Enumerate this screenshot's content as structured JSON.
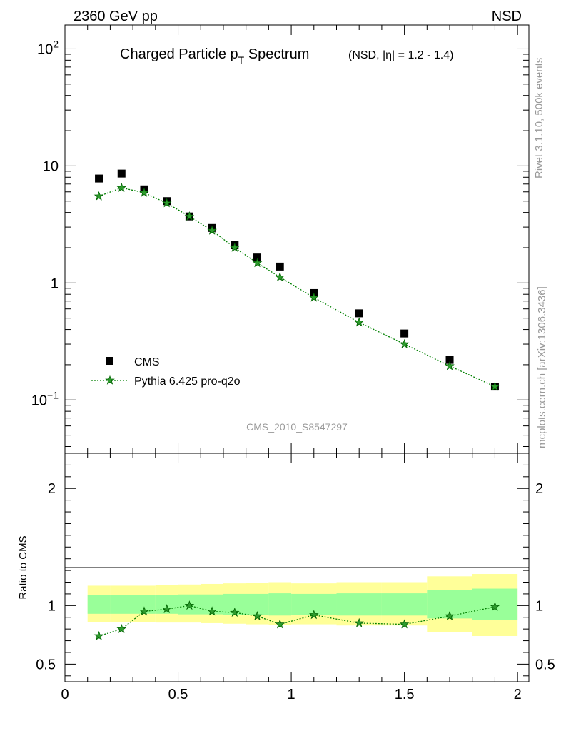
{
  "header": {
    "left": "2360 GeV pp",
    "right": "NSD"
  },
  "title": {
    "main": "Charged Particle p",
    "sub": "T",
    "main2": " Spectrum",
    "extra": "(NSD, |η| = 1.2 - 1.4)"
  },
  "side_labels": {
    "top": "Rivet 3.1.10,  500k events",
    "bottom": "mcplots.cern.ch [arXiv:1306.3436]"
  },
  "analysis_id": "CMS_2010_S8547297",
  "ratio_ylabel": "Ratio to CMS",
  "colors": {
    "data": "#000000",
    "mc": "#008000",
    "band_inner": "#99ff99",
    "band_outer": "#ffff99"
  },
  "chart_data": [
    {
      "type": "scatter",
      "name": "main",
      "yscale": "log",
      "xlim": [
        0,
        2.05
      ],
      "ylim": [
        0.035,
        160
      ],
      "y_tick_labels": [
        "10^-1",
        "1",
        "10",
        "10^2"
      ],
      "x": [
        0.15,
        0.25,
        0.35,
        0.45,
        0.55,
        0.65,
        0.75,
        0.85,
        0.95,
        1.1,
        1.3,
        1.5,
        1.7,
        1.9
      ],
      "series": [
        {
          "name": "CMS",
          "marker": "square",
          "values": [
            7.8,
            8.6,
            6.3,
            5.0,
            3.7,
            2.95,
            2.1,
            1.65,
            1.38,
            0.82,
            0.55,
            0.37,
            0.22,
            0.13
          ]
        },
        {
          "name": "Pythia 6.425 pro-q2o",
          "marker": "star",
          "line": "dotted",
          "values": [
            5.5,
            6.5,
            5.9,
            4.8,
            3.7,
            2.8,
            2.0,
            1.48,
            1.12,
            0.75,
            0.46,
            0.3,
            0.195,
            0.13
          ]
        }
      ],
      "legend": "bottom-left"
    },
    {
      "type": "scatter",
      "name": "ratio",
      "xlim": [
        0,
        2.05
      ],
      "ylim": [
        0.35,
        2.3
      ],
      "y_tick_labels": [
        "0.5",
        "1",
        "2"
      ],
      "x_tick_labels": [
        "0",
        "0.5",
        "1",
        "1.5",
        "2"
      ],
      "ylabel": "Ratio to CMS",
      "ratio_values": [
        0.74,
        0.8,
        0.95,
        0.97,
        1.0,
        0.95,
        0.94,
        0.91,
        0.84,
        0.92,
        0.85,
        0.84,
        0.91,
        0.99
      ],
      "bands": [
        {
          "xmin": 0.1,
          "xmax": 0.2,
          "inner": [
            0.93,
            1.09
          ],
          "outer": [
            0.86,
            1.17
          ]
        },
        {
          "xmin": 0.2,
          "xmax": 0.3,
          "inner": [
            0.93,
            1.09
          ],
          "outer": [
            0.86,
            1.17
          ]
        },
        {
          "xmin": 0.3,
          "xmax": 0.4,
          "inner": [
            0.93,
            1.09
          ],
          "outer": [
            0.86,
            1.17
          ]
        },
        {
          "xmin": 0.4,
          "xmax": 0.5,
          "inner": [
            0.93,
            1.09
          ],
          "outer": [
            0.855,
            1.175
          ]
        },
        {
          "xmin": 0.5,
          "xmax": 0.6,
          "inner": [
            0.925,
            1.095
          ],
          "outer": [
            0.855,
            1.18
          ]
        },
        {
          "xmin": 0.6,
          "xmax": 0.7,
          "inner": [
            0.925,
            1.095
          ],
          "outer": [
            0.85,
            1.185
          ]
        },
        {
          "xmin": 0.7,
          "xmax": 0.8,
          "inner": [
            0.92,
            1.1
          ],
          "outer": [
            0.845,
            1.19
          ]
        },
        {
          "xmin": 0.8,
          "xmax": 0.9,
          "inner": [
            0.92,
            1.1
          ],
          "outer": [
            0.84,
            1.195
          ]
        },
        {
          "xmin": 0.9,
          "xmax": 1.0,
          "inner": [
            0.915,
            1.105
          ],
          "outer": [
            0.835,
            1.2
          ]
        },
        {
          "xmin": 1.0,
          "xmax": 1.2,
          "inner": [
            0.92,
            1.1
          ],
          "outer": [
            0.84,
            1.19
          ]
        },
        {
          "xmin": 1.2,
          "xmax": 1.4,
          "inner": [
            0.915,
            1.105
          ],
          "outer": [
            0.83,
            1.2
          ]
        },
        {
          "xmin": 1.4,
          "xmax": 1.6,
          "inner": [
            0.915,
            1.105
          ],
          "outer": [
            0.83,
            1.2
          ]
        },
        {
          "xmin": 1.6,
          "xmax": 1.8,
          "inner": [
            0.89,
            1.13
          ],
          "outer": [
            0.775,
            1.25
          ]
        },
        {
          "xmin": 1.8,
          "xmax": 2.0,
          "inner": [
            0.875,
            1.145
          ],
          "outer": [
            0.74,
            1.27
          ]
        }
      ]
    }
  ]
}
